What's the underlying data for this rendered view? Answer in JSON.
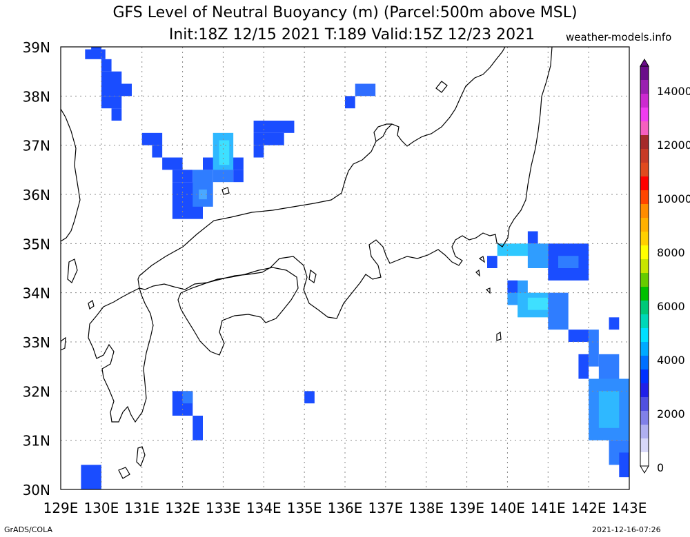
{
  "header": {
    "title_line1": "GFS Level of Neutral Buoyancy (m) (Parcel:500m above MSL)",
    "title_line2": "Init:18Z 12/15 2021 T:189 Valid:15Z 12/23 2021",
    "credit": "weather-models.info"
  },
  "footer": {
    "left": "GrADS/COLA",
    "right": "2021-12-16-07:26"
  },
  "map": {
    "lon_ticks": [
      "129E",
      "130E",
      "131E",
      "132E",
      "133E",
      "134E",
      "135E",
      "136E",
      "137E",
      "138E",
      "139E",
      "140E",
      "141E",
      "142E",
      "143E"
    ],
    "lat_ticks": [
      "39N",
      "38N",
      "37N",
      "36N",
      "35N",
      "34N",
      "33N",
      "32N",
      "31N",
      "30N"
    ],
    "lon_range": [
      129,
      143
    ],
    "lat_range": [
      30,
      39
    ],
    "grid": true
  },
  "colorbar": {
    "labels": [
      "14000",
      "12000",
      "10000",
      "8000",
      "6000",
      "4000",
      "2000",
      "0"
    ],
    "colors": [
      "#6a0d8a",
      "#9a1fb0",
      "#cc2ad0",
      "#f03cf0",
      "#f55fbf",
      "#a52a2a",
      "#c73a26",
      "#e04a1e",
      "#ff0000",
      "#ff4500",
      "#ff8c00",
      "#ffb000",
      "#ffd000",
      "#ffff00",
      "#c8e600",
      "#66cc00",
      "#00c000",
      "#00c878",
      "#00d8b8",
      "#00e0ff",
      "#00aaff",
      "#0070ff",
      "#0030ff",
      "#2020e8",
      "#5050e0",
      "#8080e8",
      "#b0b0f0",
      "#d8d8f8",
      "#ffffff"
    ]
  },
  "cells": [
    {
      "lon": 129.6,
      "lat": 38.75,
      "w": 0.5,
      "h": 0.2,
      "c": "#1a4dff"
    },
    {
      "lon": 129.75,
      "lat": 38.95,
      "w": 0.25,
      "h": 0.2,
      "c": "#1a4dff"
    },
    {
      "lon": 130.0,
      "lat": 38.5,
      "w": 0.25,
      "h": 0.25,
      "c": "#1a4dff"
    },
    {
      "lon": 130.0,
      "lat": 38.25,
      "w": 0.5,
      "h": 0.25,
      "c": "#1a4dff"
    },
    {
      "lon": 130.0,
      "lat": 38.0,
      "w": 0.75,
      "h": 0.25,
      "c": "#1a4dff"
    },
    {
      "lon": 130.0,
      "lat": 37.75,
      "w": 0.5,
      "h": 0.25,
      "c": "#1a4dff"
    },
    {
      "lon": 130.25,
      "lat": 37.5,
      "w": 0.25,
      "h": 0.25,
      "c": "#1a4dff"
    },
    {
      "lon": 131.0,
      "lat": 37.0,
      "w": 0.5,
      "h": 0.25,
      "c": "#1a4dff"
    },
    {
      "lon": 131.25,
      "lat": 36.75,
      "w": 0.25,
      "h": 0.25,
      "c": "#1a4dff"
    },
    {
      "lon": 131.5,
      "lat": 36.5,
      "w": 0.5,
      "h": 0.25,
      "c": "#1a4dff"
    },
    {
      "lon": 131.75,
      "lat": 36.25,
      "w": 0.5,
      "h": 0.25,
      "c": "#1a4dff"
    },
    {
      "lon": 131.75,
      "lat": 35.5,
      "w": 0.75,
      "h": 0.75,
      "c": "#1a4dff"
    },
    {
      "lon": 132.25,
      "lat": 35.75,
      "w": 0.5,
      "h": 0.75,
      "c": "#2f7dff"
    },
    {
      "lon": 132.4,
      "lat": 35.9,
      "w": 0.2,
      "h": 0.2,
      "c": "#4aa8ff"
    },
    {
      "lon": 132.5,
      "lat": 36.5,
      "w": 1.0,
      "h": 0.25,
      "c": "#1a4dff"
    },
    {
      "lon": 132.75,
      "lat": 36.25,
      "w": 0.5,
      "h": 0.25,
      "c": "#2f7dff"
    },
    {
      "lon": 132.75,
      "lat": 36.5,
      "w": 0.5,
      "h": 0.75,
      "c": "#2fb8ff"
    },
    {
      "lon": 132.9,
      "lat": 36.6,
      "w": 0.25,
      "h": 0.5,
      "c": "#3ee0ff"
    },
    {
      "lon": 133.25,
      "lat": 36.25,
      "w": 0.25,
      "h": 0.25,
      "c": "#1a4dff"
    },
    {
      "lon": 133.75,
      "lat": 36.75,
      "w": 0.25,
      "h": 0.25,
      "c": "#1a4dff"
    },
    {
      "lon": 133.75,
      "lat": 37.0,
      "w": 0.75,
      "h": 0.25,
      "c": "#1a4dff"
    },
    {
      "lon": 133.75,
      "lat": 37.25,
      "w": 1.0,
      "h": 0.25,
      "c": "#1a4dff"
    },
    {
      "lon": 136.0,
      "lat": 37.75,
      "w": 0.25,
      "h": 0.25,
      "c": "#1a4dff"
    },
    {
      "lon": 136.25,
      "lat": 38.0,
      "w": 0.5,
      "h": 0.25,
      "c": "#2f6dff"
    },
    {
      "lon": 139.5,
      "lat": 34.5,
      "w": 0.25,
      "h": 0.25,
      "c": "#1a4dff"
    },
    {
      "lon": 139.75,
      "lat": 34.75,
      "w": 1.0,
      "h": 0.25,
      "c": "#2fc8ff"
    },
    {
      "lon": 140.5,
      "lat": 35.0,
      "w": 0.25,
      "h": 0.25,
      "c": "#1a4dff"
    },
    {
      "lon": 140.5,
      "lat": 34.5,
      "w": 0.5,
      "h": 0.5,
      "c": "#2f9dff"
    },
    {
      "lon": 141.0,
      "lat": 34.25,
      "w": 1.0,
      "h": 0.75,
      "c": "#1a4dff"
    },
    {
      "lon": 141.25,
      "lat": 34.5,
      "w": 0.5,
      "h": 0.25,
      "c": "#2f7dff"
    },
    {
      "lon": 140.0,
      "lat": 33.75,
      "w": 0.5,
      "h": 0.5,
      "c": "#2f9dff"
    },
    {
      "lon": 140.0,
      "lat": 34.0,
      "w": 0.25,
      "h": 0.25,
      "c": "#1a4dff"
    },
    {
      "lon": 140.25,
      "lat": 33.5,
      "w": 0.75,
      "h": 0.5,
      "c": "#2fb8ff"
    },
    {
      "lon": 140.5,
      "lat": 33.65,
      "w": 0.5,
      "h": 0.25,
      "c": "#3ee0ff"
    },
    {
      "lon": 141.0,
      "lat": 33.25,
      "w": 0.5,
      "h": 0.75,
      "c": "#2f7dff"
    },
    {
      "lon": 141.5,
      "lat": 33.0,
      "w": 0.5,
      "h": 0.25,
      "c": "#1a4dff"
    },
    {
      "lon": 142.5,
      "lat": 33.25,
      "w": 0.25,
      "h": 0.25,
      "c": "#1a4dff"
    },
    {
      "lon": 142.0,
      "lat": 32.5,
      "w": 0.25,
      "h": 0.75,
      "c": "#2f7dff"
    },
    {
      "lon": 142.25,
      "lat": 32.25,
      "w": 0.5,
      "h": 0.5,
      "c": "#2f7dff"
    },
    {
      "lon": 141.75,
      "lat": 32.25,
      "w": 0.25,
      "h": 0.5,
      "c": "#1a4dff"
    },
    {
      "lon": 142.0,
      "lat": 31.0,
      "w": 1.0,
      "h": 1.25,
      "c": "#2f8dff"
    },
    {
      "lon": 142.25,
      "lat": 31.25,
      "w": 0.5,
      "h": 0.75,
      "c": "#2fb8ff"
    },
    {
      "lon": 142.5,
      "lat": 30.5,
      "w": 0.5,
      "h": 0.5,
      "c": "#2f7dff"
    },
    {
      "lon": 142.75,
      "lat": 30.25,
      "w": 0.25,
      "h": 0.5,
      "c": "#1a4dff"
    },
    {
      "lon": 131.75,
      "lat": 31.5,
      "w": 0.5,
      "h": 0.5,
      "c": "#1a4dff"
    },
    {
      "lon": 132.0,
      "lat": 31.75,
      "w": 0.25,
      "h": 0.25,
      "c": "#2f7dff"
    },
    {
      "lon": 132.25,
      "lat": 31.0,
      "w": 0.25,
      "h": 0.5,
      "c": "#1a4dff"
    },
    {
      "lon": 135.0,
      "lat": 31.75,
      "w": 0.25,
      "h": 0.25,
      "c": "#1a4dff"
    },
    {
      "lon": 129.5,
      "lat": 30.0,
      "w": 0.5,
      "h": 0.5,
      "c": "#1a4dff"
    }
  ]
}
